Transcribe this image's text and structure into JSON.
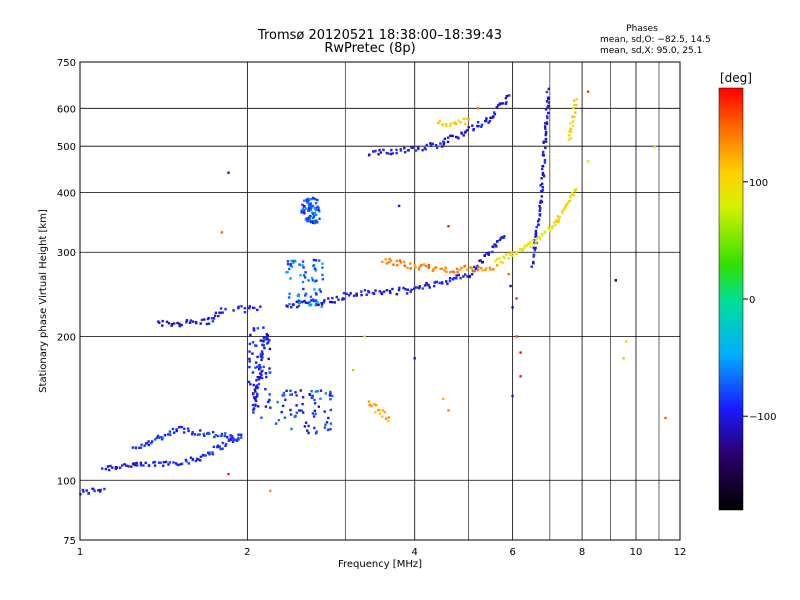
{
  "chart_data": {
    "type": "scatter",
    "title": "Tromsø 20120521 18:38:00–18:39:43",
    "subtitle": "RwPretec (8p)",
    "xlabel": "Frequency [MHz]",
    "ylabel": "Stationary phase Virtual Height [km]",
    "x_scale": "log",
    "y_scale": "log",
    "xlim": [
      1,
      12
    ],
    "ylim": [
      75,
      750
    ],
    "x_ticks": [
      1,
      2,
      4,
      6,
      8,
      10,
      12
    ],
    "y_ticks": [
      75,
      100,
      200,
      300,
      400,
      500,
      600,
      750
    ],
    "grid": true,
    "phases": {
      "title": "Phases",
      "line1": "mean, sd,O: −82.5, 14.5",
      "line2": "mean, sd,X:  95.0, 25.1"
    },
    "colorbar": {
      "label": "[deg]",
      "range": [
        -180,
        180
      ],
      "ticks": [
        100,
        0,
        -100
      ],
      "colormap": [
        "#000000",
        "#2a006a",
        "#1a1aff",
        "#00b0ff",
        "#00e090",
        "#30e000",
        "#d8f000",
        "#ffd000",
        "#ff7000",
        "#ff0000"
      ]
    },
    "series": [
      {
        "segments": [
          {
            "f0": 1.0,
            "f1": 1.1,
            "h0": 94,
            "h1": 96,
            "phase": -95
          },
          {
            "f0": 1.1,
            "f1": 1.25,
            "h0": 106,
            "h1": 108,
            "phase": -100
          },
          {
            "f0": 1.25,
            "f1": 1.6,
            "h0": 107,
            "h1": 110,
            "phase": -95
          },
          {
            "f0": 1.6,
            "f1": 1.95,
            "h0": 110,
            "h1": 124,
            "phase": -90
          },
          {
            "f0": 1.25,
            "f1": 1.5,
            "h0": 116,
            "h1": 128,
            "phase": -88
          },
          {
            "f0": 1.5,
            "f1": 1.95,
            "h0": 128,
            "h1": 122,
            "phase": -85
          },
          {
            "f0": 1.38,
            "f1": 1.7,
            "h0": 212,
            "h1": 215,
            "phase": -100
          },
          {
            "f0": 1.7,
            "f1": 1.82,
            "h0": 215,
            "h1": 228,
            "phase": -95
          },
          {
            "f0": 1.9,
            "f1": 2.1,
            "h0": 228,
            "h1": 228,
            "phase": -100
          },
          {
            "f0": 2.05,
            "f1": 2.15,
            "h0": 140,
            "h1": 200,
            "phase": -98
          },
          {
            "f0": 2.35,
            "f1": 3.0,
            "h0": 232,
            "h1": 240,
            "phase": -100
          },
          {
            "f0": 3.0,
            "f1": 4.0,
            "h0": 245,
            "h1": 250,
            "phase": -100
          },
          {
            "f0": 4.0,
            "f1": 5.0,
            "h0": 252,
            "h1": 268,
            "phase": -95
          },
          {
            "f0": 5.0,
            "f1": 5.8,
            "h0": 268,
            "h1": 325,
            "phase": -100
          },
          {
            "f0": 3.3,
            "f1": 4.5,
            "h0": 480,
            "h1": 505,
            "phase": -95
          },
          {
            "f0": 4.5,
            "f1": 5.5,
            "h0": 510,
            "h1": 570,
            "phase": -100
          },
          {
            "f0": 5.5,
            "f1": 5.9,
            "h0": 575,
            "h1": 635,
            "phase": -100
          },
          {
            "f0": 6.5,
            "f1": 6.75,
            "h0": 280,
            "h1": 380,
            "phase": -95
          },
          {
            "f0": 6.75,
            "f1": 6.95,
            "h0": 380,
            "h1": 650,
            "phase": -100
          },
          {
            "f0": 3.5,
            "f1": 4.5,
            "h0": 288,
            "h1": 275,
            "phase": 140
          },
          {
            "f0": 4.5,
            "f1": 5.6,
            "h0": 276,
            "h1": 278,
            "phase": 135
          },
          {
            "f0": 5.6,
            "f1": 6.4,
            "h0": 285,
            "h1": 310,
            "phase": 95
          },
          {
            "f0": 6.4,
            "f1": 7.2,
            "h0": 310,
            "h1": 345,
            "phase": 90
          },
          {
            "f0": 7.2,
            "f1": 7.8,
            "h0": 345,
            "h1": 410,
            "phase": 100
          },
          {
            "f0": 7.6,
            "f1": 7.8,
            "h0": 520,
            "h1": 620,
            "phase": 105
          },
          {
            "f0": 4.4,
            "f1": 5.0,
            "h0": 555,
            "h1": 565,
            "phase": 105
          },
          {
            "f0": 3.3,
            "f1": 3.6,
            "h0": 145,
            "h1": 135,
            "phase": 120
          }
        ]
      },
      {
        "blobs": [
          {
            "f0": 2.35,
            "f1": 2.75,
            "h0": 230,
            "h1": 290,
            "phase": -70
          },
          {
            "f0": 2.0,
            "f1": 2.2,
            "h0": 135,
            "h1": 210,
            "phase": -95
          },
          {
            "f0": 2.25,
            "f1": 2.85,
            "h0": 125,
            "h1": 155,
            "phase": -85
          },
          {
            "f0": 2.5,
            "f1": 2.7,
            "h0": 345,
            "h1": 390,
            "phase": -75
          }
        ]
      },
      {
        "points": [
          [
            1.85,
            440,
            -110
          ],
          [
            1.8,
            330,
            150
          ],
          [
            2.2,
            95,
            130
          ],
          [
            1.85,
            103,
            170
          ],
          [
            4.6,
            340,
            170
          ],
          [
            5.2,
            600,
            140
          ],
          [
            8.2,
            650,
            165
          ],
          [
            8.2,
            465,
            80
          ],
          [
            9.2,
            262,
            -150
          ],
          [
            9.6,
            195,
            110
          ],
          [
            9.5,
            180,
            60
          ],
          [
            10.8,
            498,
            80
          ],
          [
            11.3,
            135,
            150
          ],
          [
            6.1,
            200,
            160
          ],
          [
            6.1,
            240,
            170
          ],
          [
            6.2,
            185,
            175
          ],
          [
            6.2,
            165,
            175
          ],
          [
            6.0,
            150,
            -95
          ],
          [
            4.6,
            140,
            140
          ],
          [
            4.5,
            148,
            120
          ],
          [
            3.25,
            200,
            80
          ],
          [
            3.1,
            170,
            60
          ],
          [
            4.0,
            180,
            -100
          ],
          [
            3.75,
            375,
            -100
          ],
          [
            5.9,
            270,
            150
          ],
          [
            5.95,
            255,
            -120
          ],
          [
            6.0,
            230,
            -130
          ]
        ]
      }
    ]
  }
}
